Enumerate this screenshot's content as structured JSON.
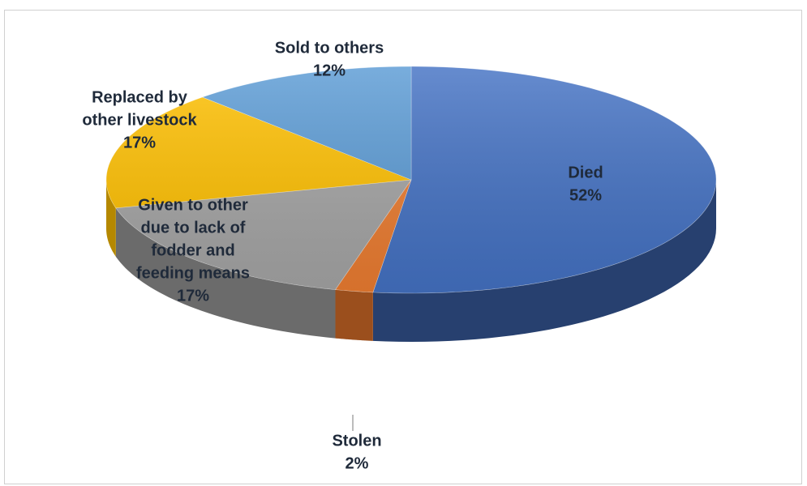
{
  "chart_data": {
    "type": "pie",
    "title": "",
    "categories": [
      "Died",
      "Stolen",
      "Given to other due to lack of fodder and feeding means",
      "Replaced by other livestock",
      "Sold to others"
    ],
    "values": [
      52,
      2,
      17,
      17,
      12
    ],
    "unit": "%",
    "slices": [
      {
        "label_lines": [
          "Died"
        ],
        "value": 52,
        "value_text": "52%",
        "color": "#4472c4",
        "side_color": "#27406f"
      },
      {
        "label_lines": [
          "Stolen"
        ],
        "value": 2,
        "value_text": "2%",
        "color": "#ed7d31",
        "side_color": "#9b4f1d"
      },
      {
        "label_lines": [
          "Given to other",
          "due to lack of",
          "fodder and",
          "feeding means"
        ],
        "value": 17,
        "value_text": "17%",
        "color": "#a5a5a5",
        "side_color": "#6b6b6b"
      },
      {
        "label_lines": [
          "Replaced by",
          "other livestock"
        ],
        "value": 17,
        "value_text": "17%",
        "color": "#ffc000",
        "side_color": "#b58800"
      },
      {
        "label_lines": [
          "Sold to others"
        ],
        "value": 12,
        "value_text": "12%",
        "color": "#5b9bd5",
        "side_color": "#3a6b99"
      }
    ],
    "style": "3d-pie",
    "legend": "none",
    "data_labels": "category-and-percent"
  }
}
